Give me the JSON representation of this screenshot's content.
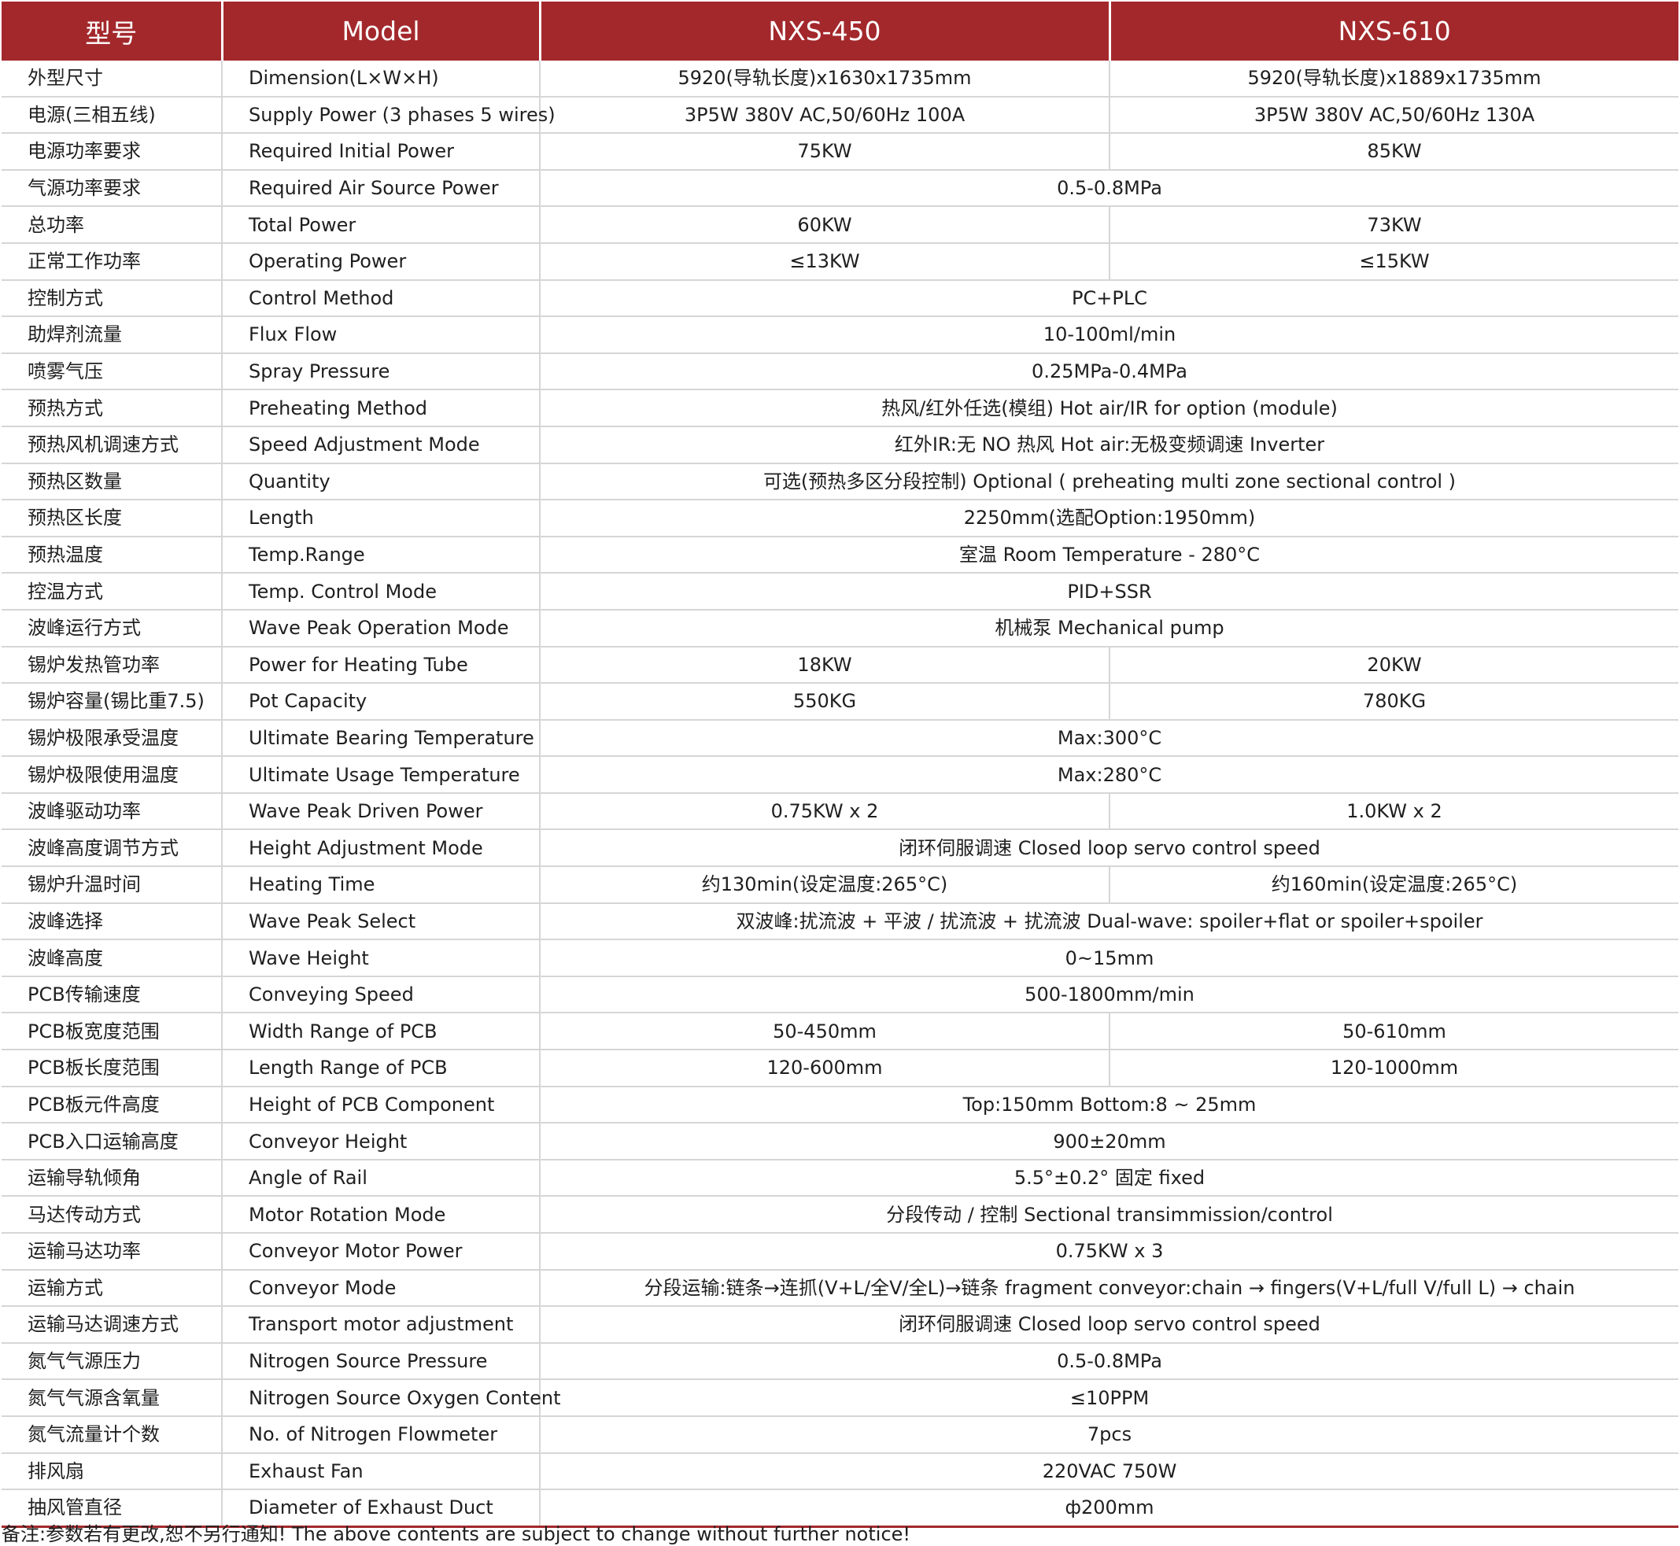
{
  "header": {
    "zh": "型号",
    "en": "Model",
    "m1": "NXS-450",
    "m2": "NXS-610"
  },
  "rows": [
    {
      "zh": "外型尺寸",
      "en": "Dimension(L×W×H)",
      "m1": "5920(导轨长度)x1630x1735mm",
      "m2": "5920(导轨长度)x1889x1735mm"
    },
    {
      "zh": "电源(三相五线)",
      "en": "Supply Power (3 phases 5 wires)",
      "m1": "3P5W 380V AC,50/60Hz 100A",
      "m2": "3P5W 380V AC,50/60Hz 130A"
    },
    {
      "zh": "电源功率要求",
      "en": "Required Initial Power",
      "m1": "75KW",
      "m2": "85KW"
    },
    {
      "zh": "气源功率要求",
      "en": "Required Air Source Power",
      "all": "0.5-0.8MPa"
    },
    {
      "zh": "总功率",
      "en": "Total Power",
      "m1": "60KW",
      "m2": "73KW"
    },
    {
      "zh": "正常工作功率",
      "en": "Operating Power",
      "m1": "≤13KW",
      "m2": "≤15KW"
    },
    {
      "zh": "控制方式",
      "en": "Control Method",
      "all": "PC+PLC"
    },
    {
      "zh": "助焊剂流量",
      "en": "Flux Flow",
      "all": "10-100ml/min"
    },
    {
      "zh": "喷雾气压",
      "en": "Spray Pressure",
      "all": "0.25MPa-0.4MPa"
    },
    {
      "zh": "预热方式",
      "en": "Preheating Method",
      "all": "热风/红外任选(模组)   Hot air/IR for option (module)"
    },
    {
      "zh": "预热风机调速方式",
      "en": "Speed Adjustment Mode",
      "all": "红外IR:无 NO   热风 Hot air:无极变频调速 Inverter"
    },
    {
      "zh": "预热区数量",
      "en": "Quantity",
      "all": "可选(预热多区分段控制) Optional ( preheating multi zone sectional control )"
    },
    {
      "zh": "预热区长度",
      "en": "Length",
      "all": "2250mm(选配Option:1950mm)"
    },
    {
      "zh": "预热温度",
      "en": "Temp.Range",
      "all": "室温 Room Temperature - 280°C"
    },
    {
      "zh": "控温方式",
      "en": "Temp. Control Mode",
      "all": "PID+SSR"
    },
    {
      "zh": "波峰运行方式",
      "en": "Wave Peak Operation Mode",
      "all": "机械泵   Mechanical pump"
    },
    {
      "zh": "锡炉发热管功率",
      "en": "Power for Heating Tube",
      "m1": "18KW",
      "m2": "20KW"
    },
    {
      "zh": "锡炉容量(锡比重7.5)",
      "en": "Pot Capacity",
      "m1": "550KG",
      "m2": "780KG"
    },
    {
      "zh": "锡炉极限承受温度",
      "en": "Ultimate Bearing Temperature",
      "all": "Max:300°C"
    },
    {
      "zh": "锡炉极限使用温度",
      "en": "Ultimate Usage Temperature",
      "all": "Max:280°C"
    },
    {
      "zh": "波峰驱动功率",
      "en": "Wave Peak Driven Power",
      "m1": "0.75KW x 2",
      "m2": "1.0KW x 2"
    },
    {
      "zh": "波峰高度调节方式",
      "en": "Height Adjustment Mode",
      "all": "闭环伺服调速   Closed loop servo control speed"
    },
    {
      "zh": "锡炉升温时间",
      "en": "Heating Time",
      "m1": "约130min(设定温度:265°C)",
      "m2": "约160min(设定温度:265°C)"
    },
    {
      "zh": "波峰选择",
      "en": "Wave Peak Select",
      "all": "双波峰:扰流波 + 平波 / 扰流波 + 扰流波 Dual-wave: spoiler+flat or spoiler+spoiler"
    },
    {
      "zh": "波峰高度",
      "en": "Wave Height",
      "all": "0~15mm"
    },
    {
      "zh": "PCB传输速度",
      "en": "Conveying Speed",
      "all": "500-1800mm/min"
    },
    {
      "zh": "PCB板宽度范围",
      "en": "Width Range of PCB",
      "m1": "50-450mm",
      "m2": "50-610mm"
    },
    {
      "zh": "PCB板长度范围",
      "en": "Length Range of PCB",
      "m1": "120-600mm",
      "m2": "120-1000mm"
    },
    {
      "zh": "PCB板元件高度",
      "en": "Height of PCB Component",
      "all": "Top:150mm  Bottom:8 ~ 25mm"
    },
    {
      "zh": "PCB入口运输高度",
      "en": "Conveyor Height",
      "all": "900±20mm"
    },
    {
      "zh": "运输导轨倾角",
      "en": "Angle of Rail",
      "all": "5.5°±0.2° 固定 fixed"
    },
    {
      "zh": "马达传动方式",
      "en": "Motor Rotation Mode",
      "all": "分段传动 / 控制   Sectional transimmission/control"
    },
    {
      "zh": "运输马达功率",
      "en": "Conveyor Motor Power",
      "all": "0.75KW x 3"
    },
    {
      "zh": "运输方式",
      "en": "Conveyor Mode",
      "all": "分段运输:链条→连抓(V+L/全V/全L)→链条 fragment conveyor:chain → fingers(V+L/full V/full L) → chain"
    },
    {
      "zh": "运输马达调速方式",
      "en": "Transport motor adjustment",
      "all": "闭环伺服调速   Closed loop servo control speed"
    },
    {
      "zh": "氮气气源压力",
      "en": "Nitrogen Source Pressure",
      "all": "0.5-0.8MPa"
    },
    {
      "zh": "氮气气源含氧量",
      "en": "Nitrogen Source Oxygen Content",
      "all": "≤10PPM"
    },
    {
      "zh": "氮气流量计个数",
      "en": "No. of Nitrogen Flowmeter",
      "all": "7pcs"
    },
    {
      "zh": "排风扇",
      "en": "Exhaust Fan",
      "all": "220VAC 750W"
    },
    {
      "zh": "抽风管直径",
      "en": "Diameter of Exhaust Duct",
      "all": "ф200mm"
    }
  ],
  "notice": "备注:参数若有更改,恕不另行通知! The above contents are subject to change without further notice!",
  "colors": {
    "header_bg": "#a3282c",
    "header_text": "#ffffff",
    "grid": "#d6d6d6"
  }
}
